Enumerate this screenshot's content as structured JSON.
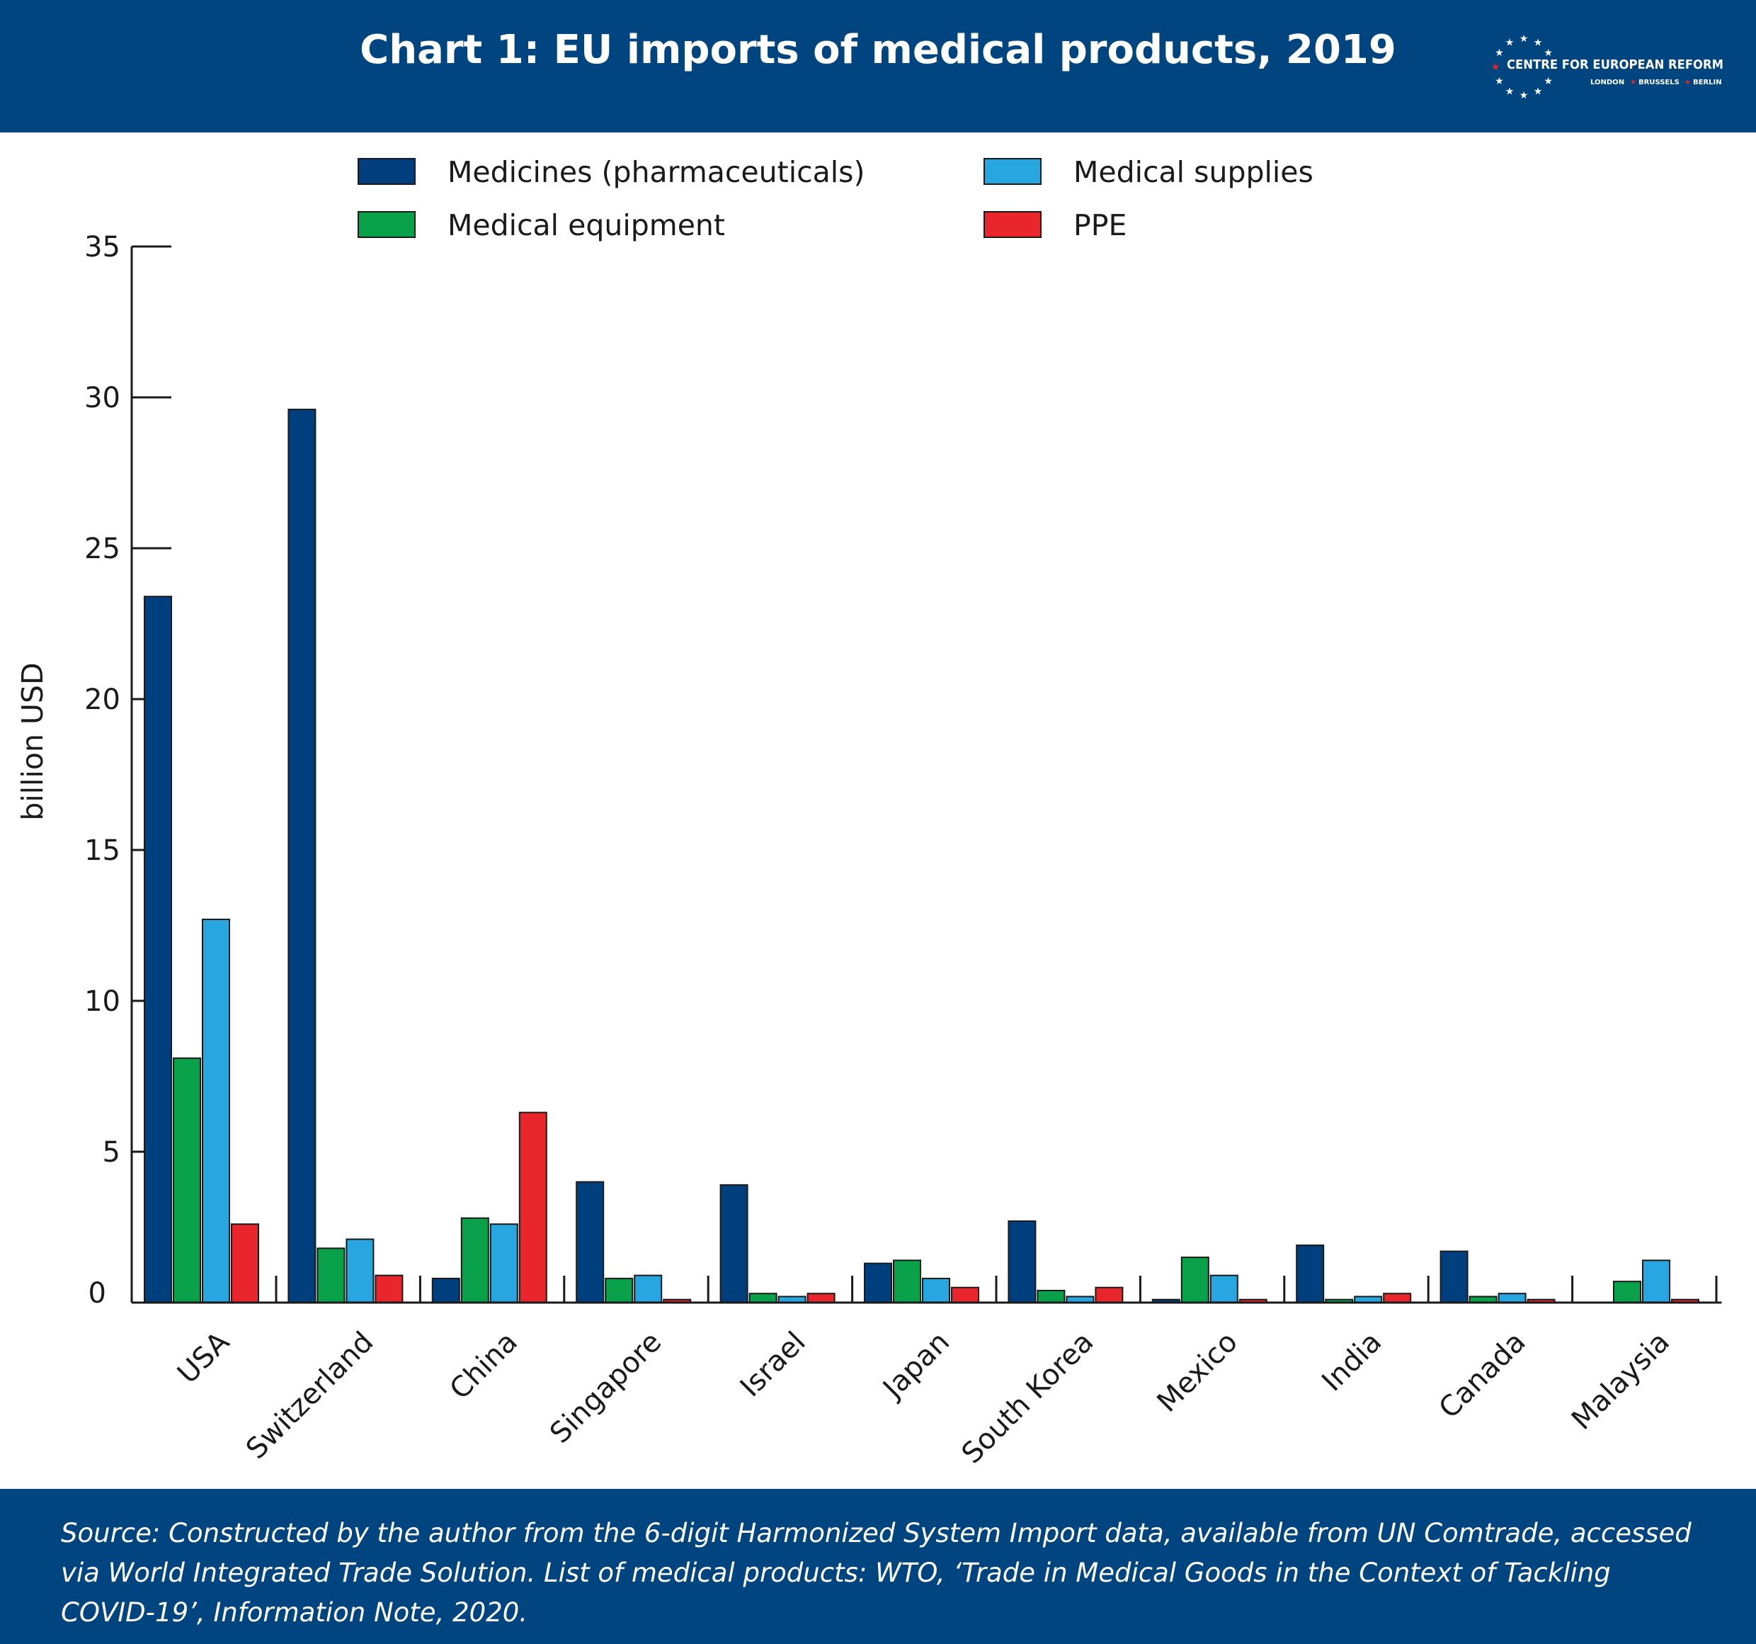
{
  "header": {
    "title": "Chart 1: EU imports of medical products, 2019"
  },
  "logo": {
    "name": "CENTRE FOR EUROPEAN REFORM",
    "cities": [
      "LONDON",
      "BRUSSELS",
      "BERLIN"
    ],
    "star_color": "#ffffff",
    "accent_color": "#e8262b"
  },
  "footer": {
    "source": "Source: Constructed by the author from the 6-digit Harmonized System Import data, available from UN Comtrade, accessed via World Integrated Trade Solution. List of medical products: WTO, ‘Trade in Medical Goods in the Context of Tackling COVID-19’, Information Note, 2020."
  },
  "colors": {
    "band": "#004480",
    "medicines": "#003f7d",
    "equipment": "#0aa14b",
    "supplies": "#27a6e0",
    "ppe": "#e8262b"
  },
  "chart_data": {
    "type": "bar",
    "ylabel": "billion USD",
    "ylim": [
      0,
      35
    ],
    "yticks": [
      0,
      5,
      10,
      15,
      20,
      25,
      30,
      35
    ],
    "grid": false,
    "legend_position": "top-center",
    "categories": [
      "USA",
      "Switzerland",
      "China",
      "Singapore",
      "Israel",
      "Japan",
      "South Korea",
      "Mexico",
      "India",
      "Canada",
      "Malaysia"
    ],
    "series": [
      {
        "name": "Medicines (pharmaceuticals)",
        "color": "#003f7d",
        "values": [
          23.4,
          29.6,
          0.8,
          4.0,
          3.9,
          1.3,
          2.7,
          0.1,
          1.9,
          1.7,
          0.0
        ]
      },
      {
        "name": "Medical equipment",
        "color": "#0aa14b",
        "values": [
          8.1,
          1.8,
          2.8,
          0.8,
          0.3,
          1.4,
          0.4,
          1.5,
          0.1,
          0.2,
          0.7
        ]
      },
      {
        "name": "Medical supplies",
        "color": "#27a6e0",
        "values": [
          12.7,
          2.1,
          2.6,
          0.9,
          0.2,
          0.8,
          0.2,
          0.9,
          0.2,
          0.3,
          1.4
        ]
      },
      {
        "name": "PPE",
        "color": "#e8262b",
        "values": [
          2.6,
          0.9,
          6.3,
          0.1,
          0.3,
          0.5,
          0.5,
          0.1,
          0.3,
          0.1,
          0.1
        ]
      }
    ]
  }
}
